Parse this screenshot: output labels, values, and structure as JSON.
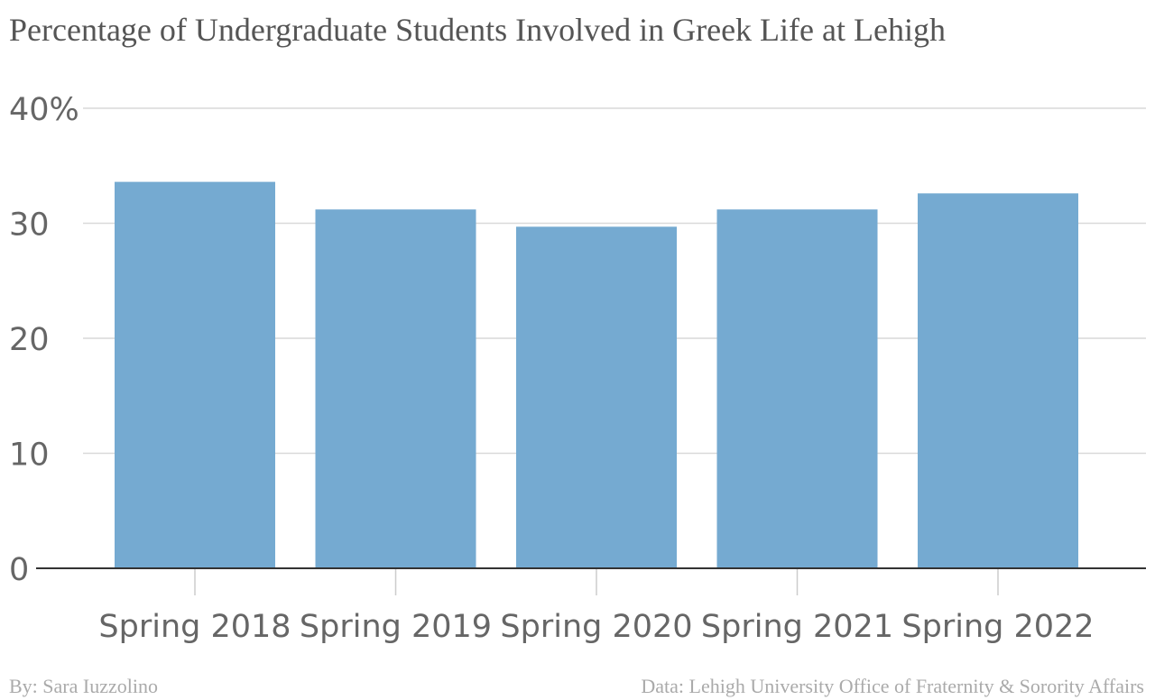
{
  "chart_data": {
    "type": "bar",
    "title": "Percentage of Undergraduate Students Involved in Greek Life at Lehigh",
    "categories": [
      "Spring 2018",
      "Spring 2019",
      "Spring 2020",
      "Spring 2021",
      "Spring 2022"
    ],
    "values": [
      33.6,
      31.2,
      29.7,
      31.2,
      32.6
    ],
    "y_ticks": [
      "0",
      "10",
      "20",
      "30",
      "40%"
    ],
    "ylim": [
      0,
      40
    ],
    "grid": true,
    "bar_color": "#75aad1"
  },
  "footer": {
    "byline": "By: Sara Iuzzolino",
    "source": "Data: Lehigh University Office of Fraternity & Sorority Affairs"
  }
}
